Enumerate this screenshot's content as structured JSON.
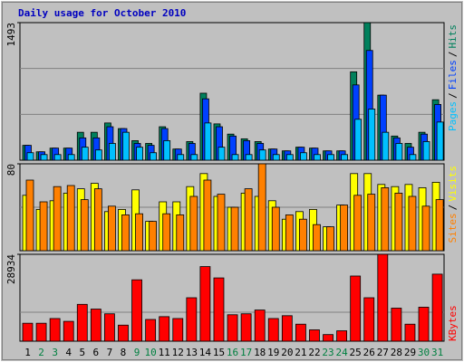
{
  "title": "Daily usage for October 2010",
  "chart_data": [
    {
      "type": "bar",
      "ylim": [
        0,
        1493
      ],
      "yticks": [
        1493
      ],
      "legend_separator": "/",
      "series": [
        {
          "name": "Hits",
          "color": "#00805c",
          "values": [
            161,
            91,
            131,
            131,
            303,
            303,
            404,
            343,
            212,
            182,
            363,
            121,
            202,
            727,
            394,
            283,
            232,
            202,
            121,
            101,
            141,
            131,
            101,
            101,
            959,
            1493,
            706,
            262,
            182,
            303,
            656
          ]
        },
        {
          "name": "Files",
          "color": "#0040ff",
          "values": [
            161,
            91,
            131,
            131,
            242,
            242,
            363,
            343,
            182,
            161,
            343,
            121,
            182,
            666,
            363,
            262,
            212,
            182,
            121,
            101,
            141,
            131,
            101,
            101,
            817,
            1191,
            706,
            242,
            141,
            283,
            605
          ]
        },
        {
          "name": "Pages",
          "color": "#00c0ff",
          "values": [
            81,
            61,
            61,
            61,
            141,
            111,
            182,
            303,
            141,
            81,
            212,
            61,
            61,
            404,
            141,
            61,
            61,
            111,
            61,
            61,
            81,
            61,
            61,
            61,
            444,
            555,
            303,
            182,
            61,
            202,
            414
          ]
        }
      ]
    },
    {
      "type": "bar",
      "ylim": [
        0,
        80
      ],
      "yticks": [
        80
      ],
      "legend_separator": "/",
      "series": [
        {
          "name": "Visits",
          "color": "#ffff00",
          "values": [
            51,
            38,
            46,
            53,
            57,
            62,
            36,
            38,
            56,
            27,
            45,
            45,
            59,
            71,
            50,
            40,
            53,
            50,
            46,
            29,
            36,
            38,
            22,
            42,
            71,
            71,
            61,
            59,
            61,
            58,
            63
          ]
        },
        {
          "name": "Sites",
          "color": "#ff8000",
          "values": [
            65,
            45,
            59,
            60,
            47,
            57,
            41,
            33,
            34,
            27,
            34,
            33,
            50,
            65,
            52,
            40,
            57,
            80,
            40,
            33,
            29,
            24,
            22,
            42,
            51,
            52,
            58,
            53,
            50,
            41,
            47
          ]
        }
      ]
    },
    {
      "type": "bar",
      "ylim": [
        0,
        28934
      ],
      "yticks": [
        28934
      ],
      "categories": [
        "1",
        "2",
        "3",
        "4",
        "5",
        "6",
        "7",
        "8",
        "9",
        "10",
        "11",
        "12",
        "13",
        "14",
        "15",
        "16",
        "17",
        "18",
        "19",
        "20",
        "21",
        "22",
        "23",
        "24",
        "25",
        "26",
        "27",
        "28",
        "29",
        "30",
        "31"
      ],
      "category_colors": [
        "#000000",
        "#008040",
        "#008040",
        "#000000",
        "#000000",
        "#000000",
        "#000000",
        "#000000",
        "#008040",
        "#008040",
        "#000000",
        "#000000",
        "#000000",
        "#000000",
        "#000000",
        "#008040",
        "#008040",
        "#000000",
        "#000000",
        "#000000",
        "#000000",
        "#000000",
        "#008040",
        "#008040",
        "#000000",
        "#000000",
        "#000000",
        "#000000",
        "#000000",
        "#008040",
        "#008040"
      ],
      "series": [
        {
          "name": "KBytes",
          "color": "#ff0000",
          "values": [
            5976,
            5976,
            7548,
            6605,
            12266,
            10693,
            9121,
            5347,
            20443,
            7234,
            8177,
            7548,
            14467,
            24846,
            21072,
            8806,
            9121,
            10379,
            7548,
            8492,
            5661,
            3774,
            2202,
            3460,
            21701,
            14467,
            28934,
            11008,
            5661,
            11322,
            22330
          ]
        }
      ]
    }
  ]
}
